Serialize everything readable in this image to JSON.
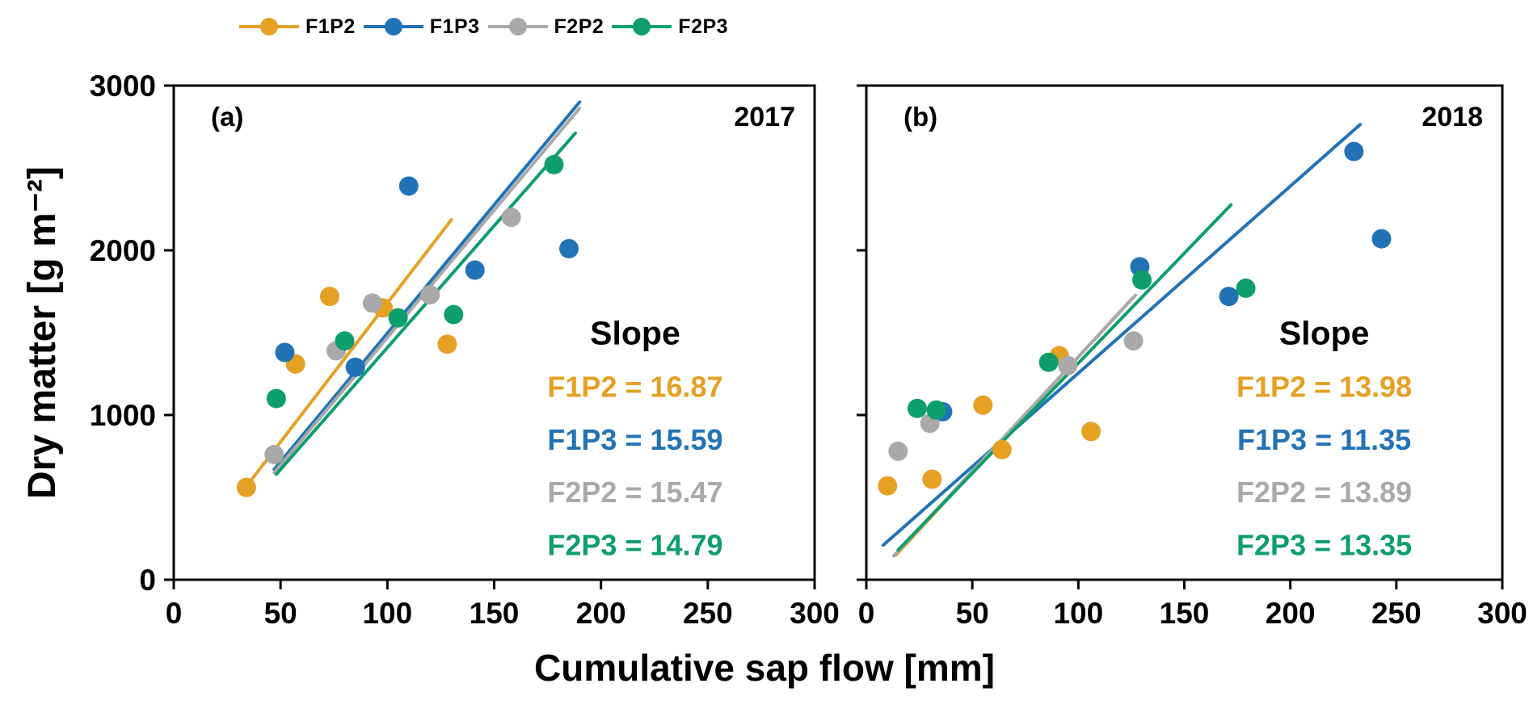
{
  "figure": {
    "x_axis_label": "Cumulative sap flow [mm]",
    "y_axis_label": "Dry matter [g m⁻²]",
    "background_color": "#FFFFFF",
    "legend_position": "top",
    "legend": [
      {
        "label": "F1P2",
        "color": "#E6A024"
      },
      {
        "label": "F1P3",
        "color": "#2173B6"
      },
      {
        "label": "F2P2",
        "color": "#A9A9A9"
      },
      {
        "label": "F2P3",
        "color": "#0E9E6E"
      }
    ]
  },
  "chart_data": [
    {
      "type": "scatter",
      "panel_label": "(a)",
      "year": "2017",
      "title": "2017",
      "xlabel": "Cumulative sap flow [mm]",
      "ylabel": "Dry matter [g m⁻²]",
      "xlim": [
        0,
        300
      ],
      "ylim": [
        0,
        3000
      ],
      "x_ticks": [
        0,
        50,
        100,
        150,
        200,
        250,
        300
      ],
      "y_ticks": [
        0,
        1000,
        2000,
        3000
      ],
      "grid": false,
      "slope_title": "Slope",
      "series": [
        {
          "name": "F1P2",
          "color": "#E6A024",
          "slope": 16.87,
          "slope_label": "F1P2 = 16.87",
          "points": [
            [
              34,
              560
            ],
            [
              57,
              1310
            ],
            [
              73,
              1720
            ],
            [
              98,
              1650
            ],
            [
              128,
              1430
            ]
          ],
          "line": [
            [
              33,
              550
            ],
            [
              130,
              2186
            ]
          ]
        },
        {
          "name": "F1P3",
          "color": "#2173B6",
          "slope": 15.59,
          "slope_label": "F1P3 = 15.59",
          "points": [
            [
              52,
              1380
            ],
            [
              85,
              1290
            ],
            [
              110,
              2390
            ],
            [
              141,
              1880
            ],
            [
              185,
              2010
            ]
          ],
          "line": [
            [
              47,
              670
            ],
            [
              190,
              2900
            ]
          ]
        },
        {
          "name": "F2P2",
          "color": "#A9A9A9",
          "slope": 15.47,
          "slope_label": "F2P2 = 15.47",
          "points": [
            [
              47,
              760
            ],
            [
              76,
              1390
            ],
            [
              93,
              1680
            ],
            [
              120,
              1730
            ],
            [
              158,
              2200
            ]
          ],
          "line": [
            [
              47,
              650
            ],
            [
              190,
              2862
            ]
          ]
        },
        {
          "name": "F2P3",
          "color": "#0E9E6E",
          "slope": 14.79,
          "slope_label": "F2P3 = 14.79",
          "points": [
            [
              48,
              1100
            ],
            [
              80,
              1450
            ],
            [
              105,
              1590
            ],
            [
              131,
              1610
            ],
            [
              178,
              2520
            ]
          ],
          "line": [
            [
              48,
              640
            ],
            [
              188,
              2711
            ]
          ]
        }
      ]
    },
    {
      "type": "scatter",
      "panel_label": "(b)",
      "year": "2018",
      "title": "2018",
      "xlabel": "Cumulative sap flow [mm]",
      "ylabel": "Dry matter [g m⁻²]",
      "xlim": [
        0,
        300
      ],
      "ylim": [
        0,
        3000
      ],
      "x_ticks": [
        0,
        50,
        100,
        150,
        200,
        250,
        300
      ],
      "y_ticks": [
        0,
        1000,
        2000,
        3000
      ],
      "grid": false,
      "slope_title": "Slope",
      "series": [
        {
          "name": "F1P2",
          "color": "#E6A024",
          "slope": 13.98,
          "slope_label": "F1P2 = 13.98",
          "points": [
            [
              10,
              570
            ],
            [
              31,
              610
            ],
            [
              55,
              1060
            ],
            [
              64,
              790
            ],
            [
              91,
              1360
            ],
            [
              106,
              900
            ]
          ],
          "line": [
            [
              14,
              150
            ],
            [
              125,
              1702
            ]
          ]
        },
        {
          "name": "F1P3",
          "color": "#2173B6",
          "slope": 11.35,
          "slope_label": "F1P3 = 11.35",
          "points": [
            [
              36,
              1020
            ],
            [
              129,
              1900
            ],
            [
              171,
              1720
            ],
            [
              230,
              2600
            ],
            [
              243,
              2070
            ]
          ],
          "line": [
            [
              8,
              210
            ],
            [
              233,
              2764
            ]
          ]
        },
        {
          "name": "F2P2",
          "color": "#A9A9A9",
          "slope": 13.89,
          "slope_label": "F2P2 = 13.89",
          "points": [
            [
              15,
              780
            ],
            [
              30,
              950
            ],
            [
              95,
              1300
            ],
            [
              126,
              1450
            ]
          ],
          "line": [
            [
              13,
              145
            ],
            [
              127,
              1728
            ]
          ]
        },
        {
          "name": "F2P3",
          "color": "#0E9E6E",
          "slope": 13.35,
          "slope_label": "F2P3 = 13.35",
          "points": [
            [
              24,
              1040
            ],
            [
              33,
              1030
            ],
            [
              86,
              1320
            ],
            [
              130,
              1820
            ],
            [
              179,
              1770
            ]
          ],
          "line": [
            [
              15,
              180
            ],
            [
              172,
              2276
            ]
          ]
        }
      ]
    }
  ]
}
